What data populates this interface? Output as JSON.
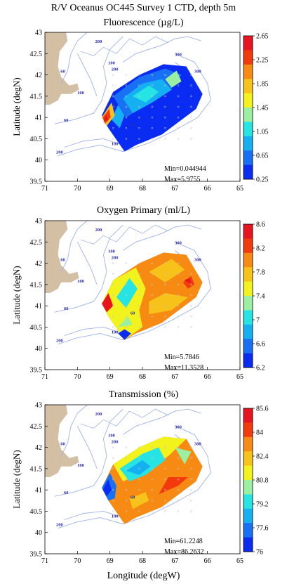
{
  "page_title": "R/V Oceanus OC445 Survey 1 CTD, depth 5m",
  "x_label": "Longitude (degW)",
  "y_label": "Latitude (degN)",
  "x_ticks": [
    "71",
    "70",
    "69",
    "68",
    "67",
    "66",
    "65"
  ],
  "y_ticks": [
    "43",
    "42.5",
    "42",
    "41.5",
    "41",
    "40.5",
    "40",
    "39.5"
  ],
  "contour_labels": [
    "200",
    "100",
    "60",
    "200",
    "100",
    "300",
    "60",
    "300",
    "60",
    "100",
    "200"
  ],
  "panels": [
    {
      "title": "Fluorescence (µg/L)",
      "min_text": "Min=0.044944",
      "max_text": "Max=5.9755",
      "colorbar": [
        "2.65",
        "2.25",
        "1.85",
        "1.45",
        "1.05",
        "0.65",
        "0.25"
      ]
    },
    {
      "title": "Oxygen Primary (ml/L)",
      "min_text": "Min=5.7846",
      "max_text": "Max=11.3528",
      "colorbar": [
        "8.6",
        "8.2",
        "7.8",
        "7.4",
        "7",
        "6.6",
        "6.2"
      ]
    },
    {
      "title": "Transmission (%)",
      "min_text": "Min=61.2248",
      "max_text": "Max=86.2632",
      "colorbar": [
        "85.6",
        "84",
        "82.4",
        "80.8",
        "79.2",
        "77.6",
        "76"
      ]
    }
  ],
  "colors": {
    "land": "#d2bfa4",
    "contour": "#9fb2e6",
    "contour_label": "#2b2bb0",
    "scale": [
      "#0a2cf2",
      "#1870f5",
      "#15b0f2",
      "#27e4e4",
      "#9af0a0",
      "#f2f21c",
      "#f7c21a",
      "#f78a12",
      "#f23a0c",
      "#e8141e"
    ]
  },
  "chart_data": {
    "type": "heatmap",
    "xlim": [
      71,
      65
    ],
    "ylim": [
      39.5,
      43
    ],
    "panels": [
      {
        "name": "Fluorescence (µg/L)",
        "colorbar_range": [
          0.25,
          2.65
        ],
        "min": 0.044944,
        "max": 5.9755
      },
      {
        "name": "Oxygen Primary (ml/L)",
        "colorbar_range": [
          6.2,
          8.6
        ],
        "min": 5.7846,
        "max": 11.3528
      },
      {
        "name": "Transmission (%)",
        "colorbar_range": [
          76,
          85.6
        ],
        "min": 61.2248,
        "max": 86.2632
      }
    ]
  }
}
